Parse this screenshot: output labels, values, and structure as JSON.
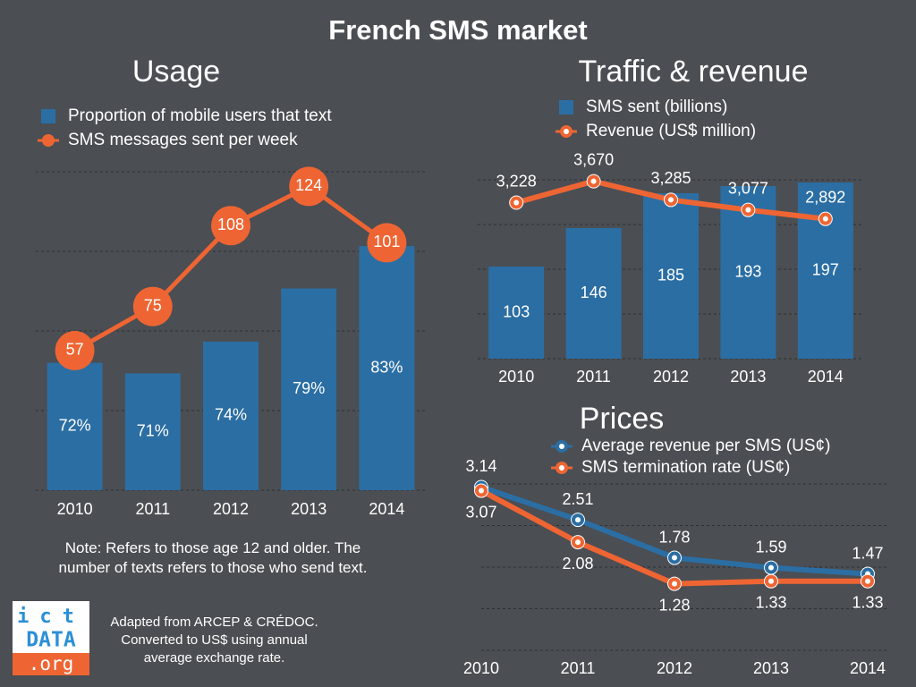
{
  "title": "French SMS market",
  "note": "Note: Refers to those age 12 and older. The number of texts refers to those who send text.",
  "source": "Adapted from ARCEP & CRÉDOC. Converted to US$ using annual average exchange rate.",
  "logo": {
    "top": "ict",
    "middle": "DATA",
    "bottom": ".org"
  },
  "chart_data": [
    {
      "type": "combo",
      "title": "Usage",
      "grid": true,
      "categories": [
        "2010",
        "2011",
        "2012",
        "2013",
        "2014"
      ],
      "ylim": [
        60,
        90
      ],
      "y2lim": [
        0,
        130
      ],
      "series": [
        {
          "name": "Proportion of mobile users that text",
          "type": "bar",
          "color": "#2b6ea3",
          "values": [
            72,
            71,
            74,
            79,
            83
          ],
          "value_labels": [
            "72%",
            "71%",
            "74%",
            "79%",
            "83%"
          ]
        },
        {
          "name": "SMS messages sent per week",
          "type": "line",
          "axis": "y2",
          "color": "#ee6533",
          "values": [
            57,
            75,
            108,
            124,
            101
          ]
        }
      ]
    },
    {
      "type": "combo",
      "title": "Traffic & revenue",
      "grid": true,
      "categories": [
        "2010",
        "2011",
        "2012",
        "2013",
        "2014"
      ],
      "ylim": [
        0,
        200
      ],
      "y2lim": [
        0,
        3700
      ],
      "series": [
        {
          "name": "SMS sent (billions)",
          "type": "bar",
          "color": "#2b6ea3",
          "values": [
            103,
            146,
            185,
            193,
            197
          ]
        },
        {
          "name": "Revenue (US$ million)",
          "type": "line",
          "axis": "y2",
          "color": "#ee6533",
          "values": [
            3228,
            3670,
            3285,
            3077,
            2892
          ],
          "value_labels": [
            "3,228",
            "3,670",
            "3,285",
            "3,077",
            "2,892"
          ]
        }
      ]
    },
    {
      "type": "line",
      "title": "Prices",
      "grid": true,
      "categories": [
        "2010",
        "2011",
        "2012",
        "2013",
        "2014"
      ],
      "ylim": [
        0,
        3.2
      ],
      "series": [
        {
          "name": "Average revenue per SMS (US¢)",
          "type": "line",
          "color": "#2b6ea3",
          "values": [
            3.14,
            2.51,
            1.78,
            1.59,
            1.47
          ]
        },
        {
          "name": "SMS termination rate (US¢)",
          "type": "line",
          "color": "#ee6533",
          "values": [
            3.07,
            2.08,
            1.28,
            1.33,
            1.33
          ]
        }
      ]
    }
  ]
}
